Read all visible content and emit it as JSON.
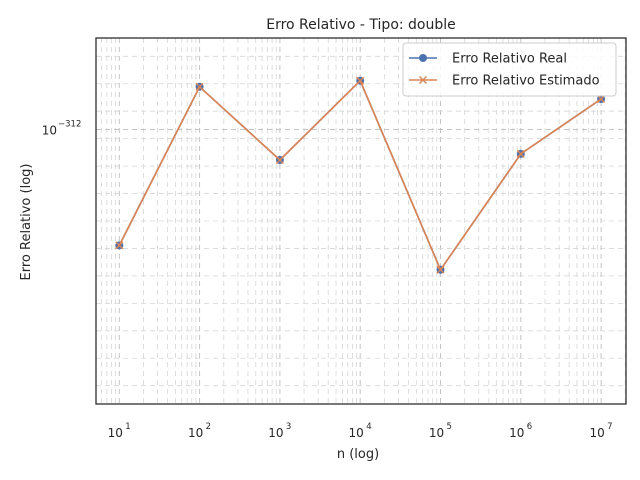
{
  "chart_data": {
    "type": "line",
    "title": "Erro Relativo - Tipo: double",
    "xlabel": "n (log)",
    "ylabel": "Erro Relativo (log)",
    "x_scale": "log",
    "y_scale": "log",
    "x": [
      10,
      100,
      1000,
      10000,
      100000,
      1000000,
      10000000
    ],
    "x_ticks": [
      {
        "base": "10",
        "exp": "1",
        "value": 10
      },
      {
        "base": "10",
        "exp": "2",
        "value": 100
      },
      {
        "base": "10",
        "exp": "3",
        "value": 1000
      },
      {
        "base": "10",
        "exp": "4",
        "value": 10000
      },
      {
        "base": "10",
        "exp": "5",
        "value": 100000
      },
      {
        "base": "10",
        "exp": "6",
        "value": 1000000
      },
      {
        "base": "10",
        "exp": "7",
        "value": 10000000
      }
    ],
    "y_ticks": [
      {
        "base": "10",
        "exp": "−312",
        "log10": -312
      }
    ],
    "ylim_log10": [
      -312.45,
      -311.85
    ],
    "grid": true,
    "legend_position": "upper right",
    "series": [
      {
        "name": "Erro Relativo Real",
        "color": "#4c72b0",
        "marker": "circle",
        "log10_values": [
          -312.19,
          -311.93,
          -312.05,
          -311.92,
          -312.23,
          -312.04,
          -311.95
        ]
      },
      {
        "name": "Erro Relativo Estimado",
        "color": "#dd8452",
        "marker": "x",
        "log10_values": [
          -312.19,
          -311.93,
          -312.05,
          -311.92,
          -312.23,
          -312.04,
          -311.95
        ]
      }
    ]
  }
}
